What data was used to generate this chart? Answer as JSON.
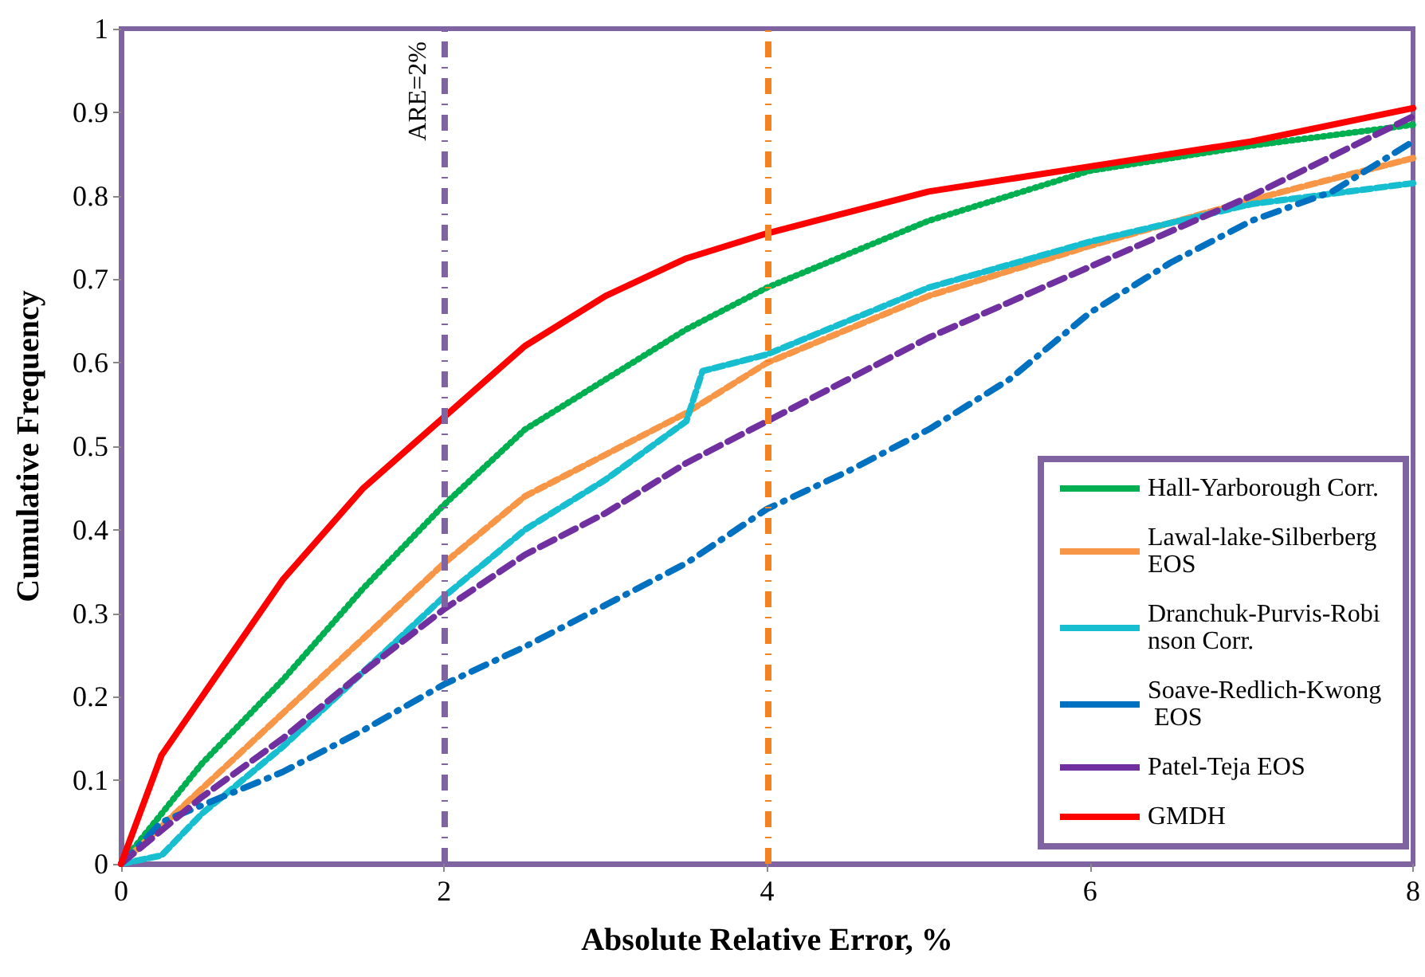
{
  "chart_data": {
    "type": "line",
    "xlabel": "Absolute Relative Error, %",
    "ylabel": "Cumulative Frequency",
    "xlim": [
      0,
      8
    ],
    "xticks": [
      0,
      2,
      4,
      6,
      8
    ],
    "ylim": [
      0,
      1
    ],
    "yticks": [
      0,
      0.1,
      0.2,
      0.3,
      0.4,
      0.5,
      0.6,
      0.7,
      0.8,
      0.9,
      1
    ],
    "grid": false,
    "legend": "bottom right",
    "marker": "none",
    "series": [
      {
        "name": "Hall-Yarborough Corr.",
        "color": "#00b050",
        "line_style": "dotted",
        "x": [
          0,
          0.5,
          1,
          1.5,
          2,
          2.5,
          3,
          3.5,
          4,
          5,
          6,
          7,
          8
        ],
        "values": [
          0,
          0.12,
          0.22,
          0.33,
          0.43,
          0.52,
          0.58,
          0.64,
          0.69,
          0.77,
          0.83,
          0.86,
          0.885
        ]
      },
      {
        "name": "Lawal-lake-Silberberg EOS",
        "color": "#f79646",
        "line_style": "dashed",
        "x": [
          0,
          0.5,
          1,
          1.5,
          2,
          2.5,
          3,
          3.5,
          4,
          5,
          6,
          7,
          8
        ],
        "values": [
          0,
          0.09,
          0.18,
          0.27,
          0.36,
          0.44,
          0.49,
          0.54,
          0.6,
          0.68,
          0.74,
          0.795,
          0.845
        ]
      },
      {
        "name": "Dranchuk-Purvis-Robinson Corr.",
        "color": "#17becf",
        "line_style": "dashed",
        "x": [
          0,
          0.25,
          0.5,
          1,
          1.5,
          2,
          2.5,
          3,
          3.5,
          3.6,
          4,
          5,
          6,
          7,
          8
        ],
        "values": [
          0,
          0.01,
          0.06,
          0.14,
          0.23,
          0.32,
          0.4,
          0.46,
          0.53,
          0.59,
          0.61,
          0.69,
          0.745,
          0.79,
          0.815
        ]
      },
      {
        "name": "Soave-Redlich-Kwong EOS",
        "color": "#0070c0",
        "line_style": "dashdot",
        "x": [
          0,
          0.25,
          0.5,
          1,
          1.5,
          2,
          2.5,
          3,
          3.5,
          4,
          4.5,
          5,
          5.5,
          6,
          6.5,
          7,
          7.5,
          8
        ],
        "values": [
          0,
          0.05,
          0.07,
          0.11,
          0.16,
          0.215,
          0.26,
          0.31,
          0.36,
          0.425,
          0.47,
          0.52,
          0.58,
          0.66,
          0.72,
          0.77,
          0.805,
          0.865
        ]
      },
      {
        "name": "Patel-Teja EOS",
        "color": "#7030a0",
        "line_style": "longdash",
        "x": [
          0,
          0.5,
          1,
          1.5,
          2,
          2.5,
          3,
          3.5,
          4,
          5,
          6,
          7,
          8
        ],
        "values": [
          0,
          0.08,
          0.15,
          0.23,
          0.305,
          0.37,
          0.42,
          0.48,
          0.53,
          0.63,
          0.715,
          0.8,
          0.895
        ]
      },
      {
        "name": "GMDH",
        "color": "#ff0000",
        "line_style": "solid",
        "x": [
          0,
          0.25,
          0.5,
          1,
          1.5,
          2,
          2.5,
          3,
          3.5,
          4,
          5,
          6,
          7,
          8
        ],
        "values": [
          0,
          0.13,
          0.2,
          0.34,
          0.45,
          0.535,
          0.62,
          0.68,
          0.725,
          0.755,
          0.805,
          0.835,
          0.865,
          0.905
        ]
      }
    ],
    "ref_lines": [
      {
        "axis": "x",
        "value": 2,
        "label": "ARE=2%",
        "color": "#8064a2",
        "line_style": "dashdot"
      },
      {
        "axis": "x",
        "value": 4,
        "label": null,
        "color": "#f58220",
        "line_style": "dashdot"
      }
    ]
  }
}
